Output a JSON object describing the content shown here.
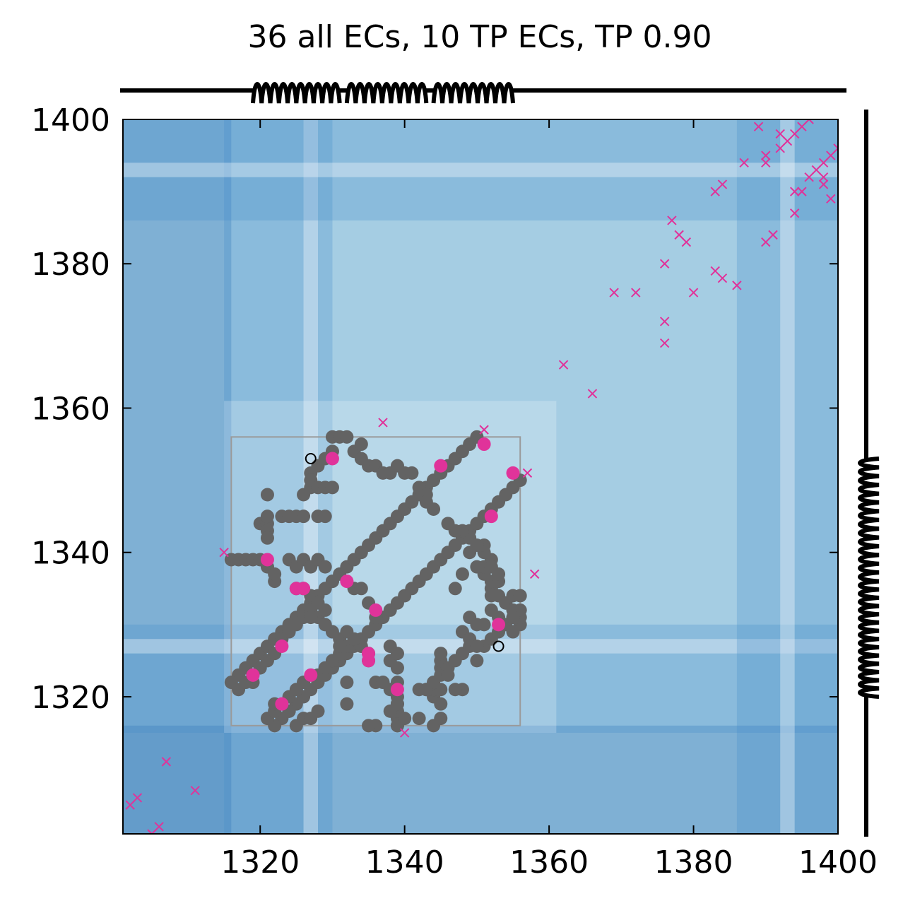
{
  "chart_data": {
    "type": "scatter",
    "title": "36 all ECs, 10 TP ECs, TP 0.90",
    "xlim": [
      1301,
      1400
    ],
    "ylim": [
      1301,
      1400
    ],
    "xticks": [
      1320,
      1340,
      1360,
      1380,
      1400
    ],
    "yticks": [
      1320,
      1340,
      1360,
      1380,
      1400
    ],
    "grid": false,
    "colors": {
      "contacts": "#636363",
      "true_positive": "#e0339a",
      "false_positive": "#e0339a",
      "open_marker": "#000000",
      "box": "#9a9a9a",
      "background": "#a5cde3",
      "track": "#000000"
    },
    "highlight_box": {
      "x": [
        1316,
        1356
      ],
      "y": [
        1316,
        1356
      ]
    },
    "bands": [
      {
        "range": [
          1301,
          1315
        ],
        "shade": "dark"
      },
      {
        "range": [
          1315,
          1329
        ],
        "shade": "medium"
      },
      {
        "range": [
          1326,
          1327
        ],
        "shade": "light"
      },
      {
        "range": [
          1386,
          1400
        ],
        "shade": "medium"
      },
      {
        "range": [
          1392,
          1393
        ],
        "shade": "light"
      }
    ],
    "secondary_structure": {
      "top_helices": [
        [
          1319,
          1330
        ],
        [
          1332,
          1342
        ],
        [
          1344,
          1354
        ]
      ],
      "right_helices": [
        [
          1320,
          1335
        ],
        [
          1336,
          1352
        ]
      ]
    },
    "contacts": [
      [
        1317,
        1323
      ],
      [
        1318,
        1324
      ],
      [
        1319,
        1325
      ],
      [
        1320,
        1326
      ],
      [
        1321,
        1327
      ],
      [
        1322,
        1328
      ],
      [
        1323,
        1329
      ],
      [
        1324,
        1330
      ],
      [
        1325,
        1331
      ],
      [
        1326,
        1332
      ],
      [
        1327,
        1333
      ],
      [
        1328,
        1334
      ],
      [
        1329,
        1335
      ],
      [
        1330,
        1336
      ],
      [
        1331,
        1337
      ],
      [
        1332,
        1338
      ],
      [
        1333,
        1339
      ],
      [
        1334,
        1340
      ],
      [
        1335,
        1341
      ],
      [
        1336,
        1342
      ],
      [
        1337,
        1343
      ],
      [
        1338,
        1344
      ],
      [
        1339,
        1345
      ],
      [
        1340,
        1346
      ],
      [
        1341,
        1347
      ],
      [
        1342,
        1348
      ],
      [
        1343,
        1349
      ],
      [
        1344,
        1350
      ],
      [
        1345,
        1351
      ],
      [
        1346,
        1352
      ],
      [
        1347,
        1353
      ],
      [
        1348,
        1354
      ],
      [
        1349,
        1355
      ],
      [
        1350,
        1356
      ],
      [
        1323,
        1317
      ],
      [
        1324,
        1318
      ],
      [
        1325,
        1319
      ],
      [
        1326,
        1320
      ],
      [
        1327,
        1321
      ],
      [
        1328,
        1322
      ],
      [
        1329,
        1323
      ],
      [
        1330,
        1324
      ],
      [
        1331,
        1325
      ],
      [
        1332,
        1326
      ],
      [
        1333,
        1327
      ],
      [
        1334,
        1328
      ],
      [
        1335,
        1329
      ],
      [
        1336,
        1330
      ],
      [
        1337,
        1331
      ],
      [
        1338,
        1332
      ],
      [
        1339,
        1333
      ],
      [
        1340,
        1334
      ],
      [
        1341,
        1335
      ],
      [
        1342,
        1336
      ],
      [
        1343,
        1337
      ],
      [
        1344,
        1338
      ],
      [
        1345,
        1339
      ],
      [
        1346,
        1340
      ],
      [
        1347,
        1341
      ],
      [
        1348,
        1342
      ],
      [
        1349,
        1343
      ],
      [
        1350,
        1344
      ],
      [
        1351,
        1345
      ],
      [
        1352,
        1346
      ],
      [
        1353,
        1347
      ],
      [
        1354,
        1348
      ],
      [
        1355,
        1349
      ],
      [
        1356,
        1350
      ],
      [
        1316,
        1322
      ],
      [
        1317,
        1321
      ],
      [
        1318,
        1322
      ],
      [
        1319,
        1322
      ],
      [
        1320,
        1324
      ],
      [
        1321,
        1325
      ],
      [
        1322,
        1326
      ],
      [
        1323,
        1328
      ],
      [
        1324,
        1329
      ],
      [
        1325,
        1330
      ],
      [
        1326,
        1331
      ],
      [
        1327,
        1332
      ],
      [
        1322,
        1316
      ],
      [
        1321,
        1317
      ],
      [
        1322,
        1318
      ],
      [
        1322,
        1319
      ],
      [
        1324,
        1320
      ],
      [
        1325,
        1321
      ],
      [
        1326,
        1322
      ],
      [
        1328,
        1323
      ],
      [
        1329,
        1324
      ],
      [
        1330,
        1325
      ],
      [
        1331,
        1326
      ],
      [
        1332,
        1327
      ],
      [
        1316,
        1339
      ],
      [
        1317,
        1339
      ],
      [
        1318,
        1339
      ],
      [
        1319,
        1339
      ],
      [
        1320,
        1339
      ],
      [
        1321,
        1338
      ],
      [
        1322,
        1336
      ],
      [
        1322,
        1337
      ],
      [
        1324,
        1339
      ],
      [
        1325,
        1338
      ],
      [
        1326,
        1339
      ],
      [
        1327,
        1338
      ],
      [
        1325,
        1335
      ],
      [
        1326,
        1335
      ],
      [
        1327,
        1334
      ],
      [
        1328,
        1333
      ],
      [
        1328,
        1331
      ],
      [
        1329,
        1330
      ],
      [
        1327,
        1331
      ],
      [
        1329,
        1332
      ],
      [
        1339,
        1316
      ],
      [
        1339,
        1317
      ],
      [
        1339,
        1318
      ],
      [
        1339,
        1319
      ],
      [
        1339,
        1320
      ],
      [
        1338,
        1321
      ],
      [
        1336,
        1322
      ],
      [
        1337,
        1322
      ],
      [
        1339,
        1324
      ],
      [
        1338,
        1325
      ],
      [
        1339,
        1326
      ],
      [
        1338,
        1327
      ],
      [
        1335,
        1325
      ],
      [
        1335,
        1326
      ],
      [
        1334,
        1327
      ],
      [
        1333,
        1328
      ],
      [
        1331,
        1328
      ],
      [
        1330,
        1329
      ],
      [
        1331,
        1327
      ],
      [
        1332,
        1329
      ],
      [
        1320,
        1344
      ],
      [
        1321,
        1344
      ],
      [
        1321,
        1343
      ],
      [
        1321,
        1342
      ],
      [
        1321,
        1345
      ],
      [
        1321,
        1348
      ],
      [
        1323,
        1345
      ],
      [
        1324,
        1345
      ],
      [
        1325,
        1345
      ],
      [
        1326,
        1345
      ],
      [
        1326,
        1348
      ],
      [
        1327,
        1349
      ],
      [
        1327,
        1351
      ],
      [
        1328,
        1352
      ],
      [
        1329,
        1353
      ],
      [
        1330,
        1354
      ],
      [
        1330,
        1356
      ],
      [
        1331,
        1356
      ],
      [
        1332,
        1356
      ],
      [
        1333,
        1354
      ],
      [
        1334,
        1353
      ],
      [
        1334,
        1355
      ],
      [
        1335,
        1352
      ],
      [
        1336,
        1352
      ],
      [
        1337,
        1351
      ],
      [
        1338,
        1351
      ],
      [
        1339,
        1352
      ],
      [
        1340,
        1351
      ],
      [
        1341,
        1351
      ],
      [
        1342,
        1349
      ],
      [
        1343,
        1348
      ],
      [
        1343,
        1347
      ],
      [
        1344,
        1346
      ],
      [
        1327,
        1350
      ],
      [
        1328,
        1349
      ],
      [
        1329,
        1349
      ],
      [
        1330,
        1349
      ],
      [
        1328,
        1345
      ],
      [
        1329,
        1345
      ],
      [
        1344,
        1320
      ],
      [
        1344,
        1321
      ],
      [
        1343,
        1321
      ],
      [
        1342,
        1321
      ],
      [
        1345,
        1321
      ],
      [
        1348,
        1321
      ],
      [
        1345,
        1323
      ],
      [
        1345,
        1324
      ],
      [
        1345,
        1325
      ],
      [
        1345,
        1326
      ],
      [
        1348,
        1326
      ],
      [
        1349,
        1327
      ],
      [
        1351,
        1327
      ],
      [
        1352,
        1328
      ],
      [
        1353,
        1329
      ],
      [
        1354,
        1330
      ],
      [
        1356,
        1330
      ],
      [
        1356,
        1331
      ],
      [
        1356,
        1332
      ],
      [
        1354,
        1333
      ],
      [
        1353,
        1334
      ],
      [
        1355,
        1334
      ],
      [
        1352,
        1335
      ],
      [
        1352,
        1336
      ],
      [
        1351,
        1337
      ],
      [
        1351,
        1338
      ],
      [
        1352,
        1339
      ],
      [
        1351,
        1340
      ],
      [
        1351,
        1341
      ],
      [
        1349,
        1342
      ],
      [
        1348,
        1343
      ],
      [
        1347,
        1343
      ],
      [
        1346,
        1344
      ],
      [
        1328,
        1339
      ],
      [
        1329,
        1338
      ],
      [
        1330,
        1336
      ],
      [
        1333,
        1335
      ],
      [
        1334,
        1335
      ],
      [
        1335,
        1333
      ],
      [
        1336,
        1331
      ],
      [
        1325,
        1316
      ],
      [
        1326,
        1317
      ],
      [
        1324,
        1318
      ],
      [
        1327,
        1317
      ],
      [
        1328,
        1318
      ],
      [
        1348,
        1329
      ],
      [
        1350,
        1330
      ],
      [
        1349,
        1331
      ],
      [
        1351,
        1330
      ],
      [
        1352,
        1332
      ],
      [
        1353,
        1331
      ],
      [
        1354,
        1333
      ],
      [
        1355,
        1332
      ],
      [
        1352,
        1334
      ],
      [
        1353,
        1336
      ],
      [
        1353,
        1337
      ],
      [
        1352,
        1338
      ],
      [
        1355,
        1329
      ],
      [
        1355,
        1331
      ],
      [
        1356,
        1334
      ],
      [
        1349,
        1340
      ],
      [
        1350,
        1341
      ],
      [
        1350,
        1338
      ],
      [
        1348,
        1337
      ],
      [
        1347,
        1335
      ],
      [
        1344,
        1316
      ],
      [
        1345,
        1317
      ],
      [
        1345,
        1319
      ],
      [
        1344,
        1322
      ],
      [
        1346,
        1324
      ],
      [
        1347,
        1325
      ],
      [
        1349,
        1328
      ],
      [
        1350,
        1325
      ],
      [
        1343,
        1321
      ],
      [
        1342,
        1317
      ],
      [
        1339,
        1316
      ],
      [
        1340,
        1317
      ],
      [
        1336,
        1316
      ],
      [
        1335,
        1316
      ],
      [
        1332,
        1319
      ],
      [
        1332,
        1322
      ],
      [
        1339,
        1322
      ],
      [
        1339,
        1319
      ],
      [
        1338,
        1318
      ],
      [
        1346,
        1323
      ],
      [
        1347,
        1321
      ],
      [
        1350,
        1327
      ]
    ],
    "true_positives": [
      [
        1330,
        1353
      ],
      [
        1345,
        1352
      ],
      [
        1351,
        1355
      ],
      [
        1352,
        1345
      ],
      [
        1355,
        1351
      ],
      [
        1321,
        1339
      ],
      [
        1325,
        1335
      ],
      [
        1326,
        1335
      ],
      [
        1332,
        1336
      ],
      [
        1336,
        1332
      ],
      [
        1353,
        1330
      ],
      [
        1323,
        1327
      ],
      [
        1335,
        1326
      ],
      [
        1335,
        1325
      ],
      [
        1319,
        1323
      ],
      [
        1327,
        1323
      ],
      [
        1323,
        1319
      ],
      [
        1339,
        1321
      ]
    ],
    "false_positives": [
      [
        1302,
        1305
      ],
      [
        1303,
        1306
      ],
      [
        1305,
        1301
      ],
      [
        1306,
        1302
      ],
      [
        1307,
        1311
      ],
      [
        1311,
        1307
      ],
      [
        1315,
        1340
      ],
      [
        1337,
        1358
      ],
      [
        1340,
        1315
      ],
      [
        1351,
        1357
      ],
      [
        1357,
        1351
      ],
      [
        1358,
        1337
      ],
      [
        1362,
        1366
      ],
      [
        1366,
        1362
      ],
      [
        1369,
        1376
      ],
      [
        1372,
        1376
      ],
      [
        1376,
        1380
      ],
      [
        1376,
        1372
      ],
      [
        1376,
        1369
      ],
      [
        1377,
        1386
      ],
      [
        1378,
        1384
      ],
      [
        1379,
        1383
      ],
      [
        1380,
        1376
      ],
      [
        1383,
        1379
      ],
      [
        1383,
        1390
      ],
      [
        1384,
        1378
      ],
      [
        1384,
        1391
      ],
      [
        1386,
        1377
      ],
      [
        1387,
        1394
      ],
      [
        1389,
        1399
      ],
      [
        1390,
        1383
      ],
      [
        1390,
        1394
      ],
      [
        1390,
        1395
      ],
      [
        1391,
        1384
      ],
      [
        1392,
        1398
      ],
      [
        1392,
        1396
      ],
      [
        1393,
        1397
      ],
      [
        1394,
        1390
      ],
      [
        1394,
        1398
      ],
      [
        1394,
        1387
      ],
      [
        1395,
        1399
      ],
      [
        1395,
        1390
      ],
      [
        1396,
        1392
      ],
      [
        1396,
        1400
      ],
      [
        1397,
        1393
      ],
      [
        1398,
        1394
      ],
      [
        1398,
        1392
      ],
      [
        1398,
        1391
      ],
      [
        1399,
        1395
      ],
      [
        1399,
        1389
      ],
      [
        1400,
        1396
      ]
    ],
    "open_markers": [
      [
        1327,
        1353
      ],
      [
        1353,
        1327
      ]
    ]
  }
}
